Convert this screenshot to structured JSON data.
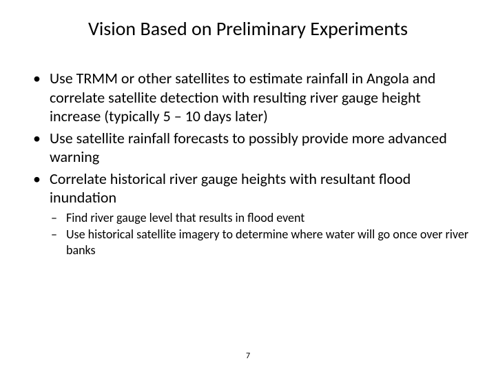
{
  "title": "Vision Based on Preliminary Experiments",
  "bullets": [
    "Use TRMM or other satellites to estimate rainfall in Angola and correlate satellite detection with resulting river gauge height increase (typically 5 – 10 days later)",
    "Use satellite rainfall forecasts to possibly provide more advanced warning",
    "Correlate historical river gauge heights with resultant flood inundation"
  ],
  "sub_bullets": [
    "Find river gauge level that results in flood event",
    "Use historical satellite imagery to determine where water will go once over river banks"
  ],
  "page_number": "7",
  "style": {
    "background_color": "#ffffff",
    "text_color": "#000000",
    "title_fontsize": 28,
    "bullet_fontsize": 22,
    "sub_bullet_fontsize": 18,
    "pagenum_fontsize": 12,
    "font_family": "Calibri"
  }
}
